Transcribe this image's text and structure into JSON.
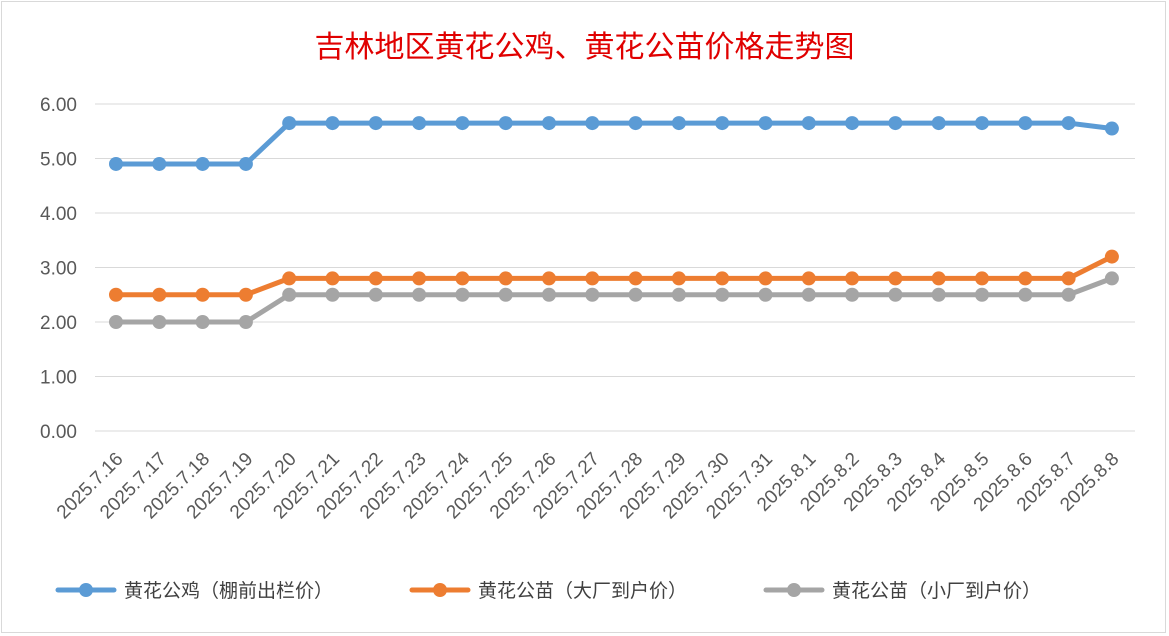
{
  "chart_data": {
    "type": "line",
    "title": "吉林地区黄花公鸡、黄花公苗价格走势图",
    "xlabel": "",
    "ylabel": "",
    "ylim": [
      0,
      6
    ],
    "yticks": [
      "0.00",
      "1.00",
      "2.00",
      "3.00",
      "4.00",
      "5.00",
      "6.00"
    ],
    "grid": true,
    "legend_position": "bottom",
    "x": [
      "2025.7.16",
      "2025.7.17",
      "2025.7.18",
      "2025.7.19",
      "2025.7.20",
      "2025.7.21",
      "2025.7.22",
      "2025.7.23",
      "2025.7.24",
      "2025.7.25",
      "2025.7.26",
      "2025.7.27",
      "2025.7.28",
      "2025.7.29",
      "2025.7.30",
      "2025.7.31",
      "2025.8.1",
      "2025.8.2",
      "2025.8.3",
      "2025.8.4",
      "2025.8.5",
      "2025.8.6",
      "2025.8.7",
      "2025.8.8"
    ],
    "series": [
      {
        "name": "黄花公鸡（棚前出栏价）",
        "color": "#5b9bd5",
        "values": [
          4.9,
          4.9,
          4.9,
          4.9,
          5.65,
          5.65,
          5.65,
          5.65,
          5.65,
          5.65,
          5.65,
          5.65,
          5.65,
          5.65,
          5.65,
          5.65,
          5.65,
          5.65,
          5.65,
          5.65,
          5.65,
          5.65,
          5.65,
          5.55
        ]
      },
      {
        "name": "黄花公苗（大厂到户价）",
        "color": "#ed7d31",
        "values": [
          2.5,
          2.5,
          2.5,
          2.5,
          2.8,
          2.8,
          2.8,
          2.8,
          2.8,
          2.8,
          2.8,
          2.8,
          2.8,
          2.8,
          2.8,
          2.8,
          2.8,
          2.8,
          2.8,
          2.8,
          2.8,
          2.8,
          2.8,
          3.2
        ]
      },
      {
        "name": "黄花公苗（小厂到户价）",
        "color": "#a5a5a5",
        "values": [
          2.0,
          2.0,
          2.0,
          2.0,
          2.5,
          2.5,
          2.5,
          2.5,
          2.5,
          2.5,
          2.5,
          2.5,
          2.5,
          2.5,
          2.5,
          2.5,
          2.5,
          2.5,
          2.5,
          2.5,
          2.5,
          2.5,
          2.5,
          2.8
        ]
      }
    ]
  }
}
